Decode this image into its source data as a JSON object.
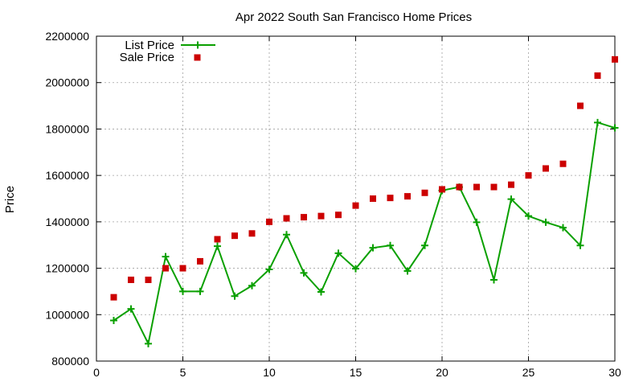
{
  "chart_data": {
    "type": "line",
    "title": "Apr 2022 South San Francisco Home Prices",
    "xlabel": "",
    "ylabel": "Price",
    "xlim": [
      0,
      30
    ],
    "ylim": [
      800000,
      2200000
    ],
    "x_ticks": [
      0,
      5,
      10,
      15,
      20,
      25,
      30
    ],
    "y_ticks": [
      800000,
      1000000,
      1200000,
      1400000,
      1600000,
      1800000,
      2000000,
      2200000
    ],
    "grid": true,
    "legend_position": "top-left",
    "series": [
      {
        "name": "List Price",
        "style": "line-plus",
        "color": "#0aa000",
        "x": [
          1,
          2,
          3,
          4,
          5,
          6,
          7,
          8,
          9,
          10,
          11,
          12,
          13,
          14,
          15,
          16,
          17,
          18,
          19,
          20,
          21,
          22,
          23,
          24,
          25,
          26,
          27,
          28,
          29,
          30
        ],
        "values": [
          975000,
          1025000,
          875000,
          1250000,
          1100000,
          1100000,
          1295000,
          1080000,
          1125000,
          1195000,
          1345000,
          1180000,
          1098000,
          1265000,
          1198000,
          1288000,
          1298000,
          1188000,
          1298000,
          1535000,
          1550000,
          1398000,
          1150000,
          1498000,
          1425000,
          1398000,
          1375000,
          1298000,
          1828000,
          1805000
        ]
      },
      {
        "name": "Sale Price",
        "style": "square-points",
        "color": "#cc0000",
        "x": [
          1,
          2,
          3,
          4,
          5,
          6,
          7,
          8,
          9,
          10,
          11,
          12,
          13,
          14,
          15,
          16,
          17,
          18,
          19,
          20,
          21,
          22,
          23,
          24,
          25,
          26,
          27,
          28,
          29,
          30
        ],
        "values": [
          1075000,
          1150000,
          1150000,
          1200000,
          1200000,
          1230000,
          1325000,
          1340000,
          1350000,
          1400000,
          1415000,
          1420000,
          1425000,
          1430000,
          1470000,
          1500000,
          1503000,
          1510000,
          1525000,
          1540000,
          1550000,
          1550000,
          1550000,
          1560000,
          1600000,
          1630000,
          1650000,
          1900000,
          2030000,
          2100000
        ]
      }
    ]
  }
}
